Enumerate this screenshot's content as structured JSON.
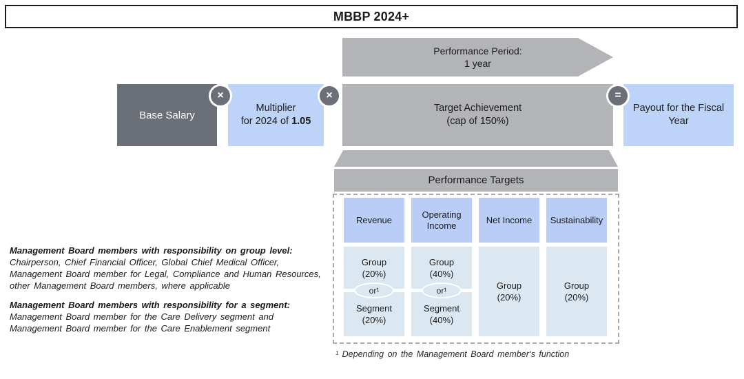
{
  "title": "MBBP 2024+",
  "arrow": {
    "line1": "Performance Period:",
    "line2": "1 year"
  },
  "formula": {
    "base_salary": "Base Salary",
    "times_symbol": "×",
    "multiplier_line1": "Multiplier",
    "multiplier_line2_prefix": "for 2024 of ",
    "multiplier_value": "1.05",
    "target_line1": "Target Achievement",
    "target_line2": "(cap of 150%)",
    "equals_symbol": "=",
    "payout": "Payout for the Fiscal Year"
  },
  "targets": {
    "header": "Performance Targets",
    "columns": [
      {
        "label": "Revenue",
        "top_line1": "Group",
        "top_line2": "(20%)",
        "or_label": "or¹",
        "bottom_line1": "Segment",
        "bottom_line2": "(20%)"
      },
      {
        "label": "Operating Income",
        "top_line1": "Group",
        "top_line2": "(40%)",
        "or_label": "or¹",
        "bottom_line1": "Segment",
        "bottom_line2": "(40%)"
      },
      {
        "label": "Net Income",
        "cell_line1": "Group",
        "cell_line2": "(20%)"
      },
      {
        "label": "Sustainability",
        "cell_line1": "Group",
        "cell_line2": "(20%)"
      }
    ]
  },
  "notes": {
    "group_heading": "Management Board members with responsibility on group level:",
    "group_lines": [
      "Chairperson, Chief Financial Officer, Global Chief Medical Officer,",
      "Management Board member for Legal, Compliance and Human Resources,",
      "other Management Board members, where applicable"
    ],
    "segment_heading": "Management Board members with responsibility for a segment:",
    "segment_lines": [
      "Management Board member for the Care Delivery segment and",
      "Management Board member for the Care Enablement segment"
    ]
  },
  "footnote": {
    "marker": "¹ ",
    "text": "Depending on the Management Board member‘s function"
  },
  "colors": {
    "dark_gray": "#6a6f78",
    "silver_gray": "#b2b4b8",
    "periwinkle_blue": "#bed3f8",
    "header_blue": "#b9cdf6",
    "pale_blue": "#dce8f1"
  }
}
